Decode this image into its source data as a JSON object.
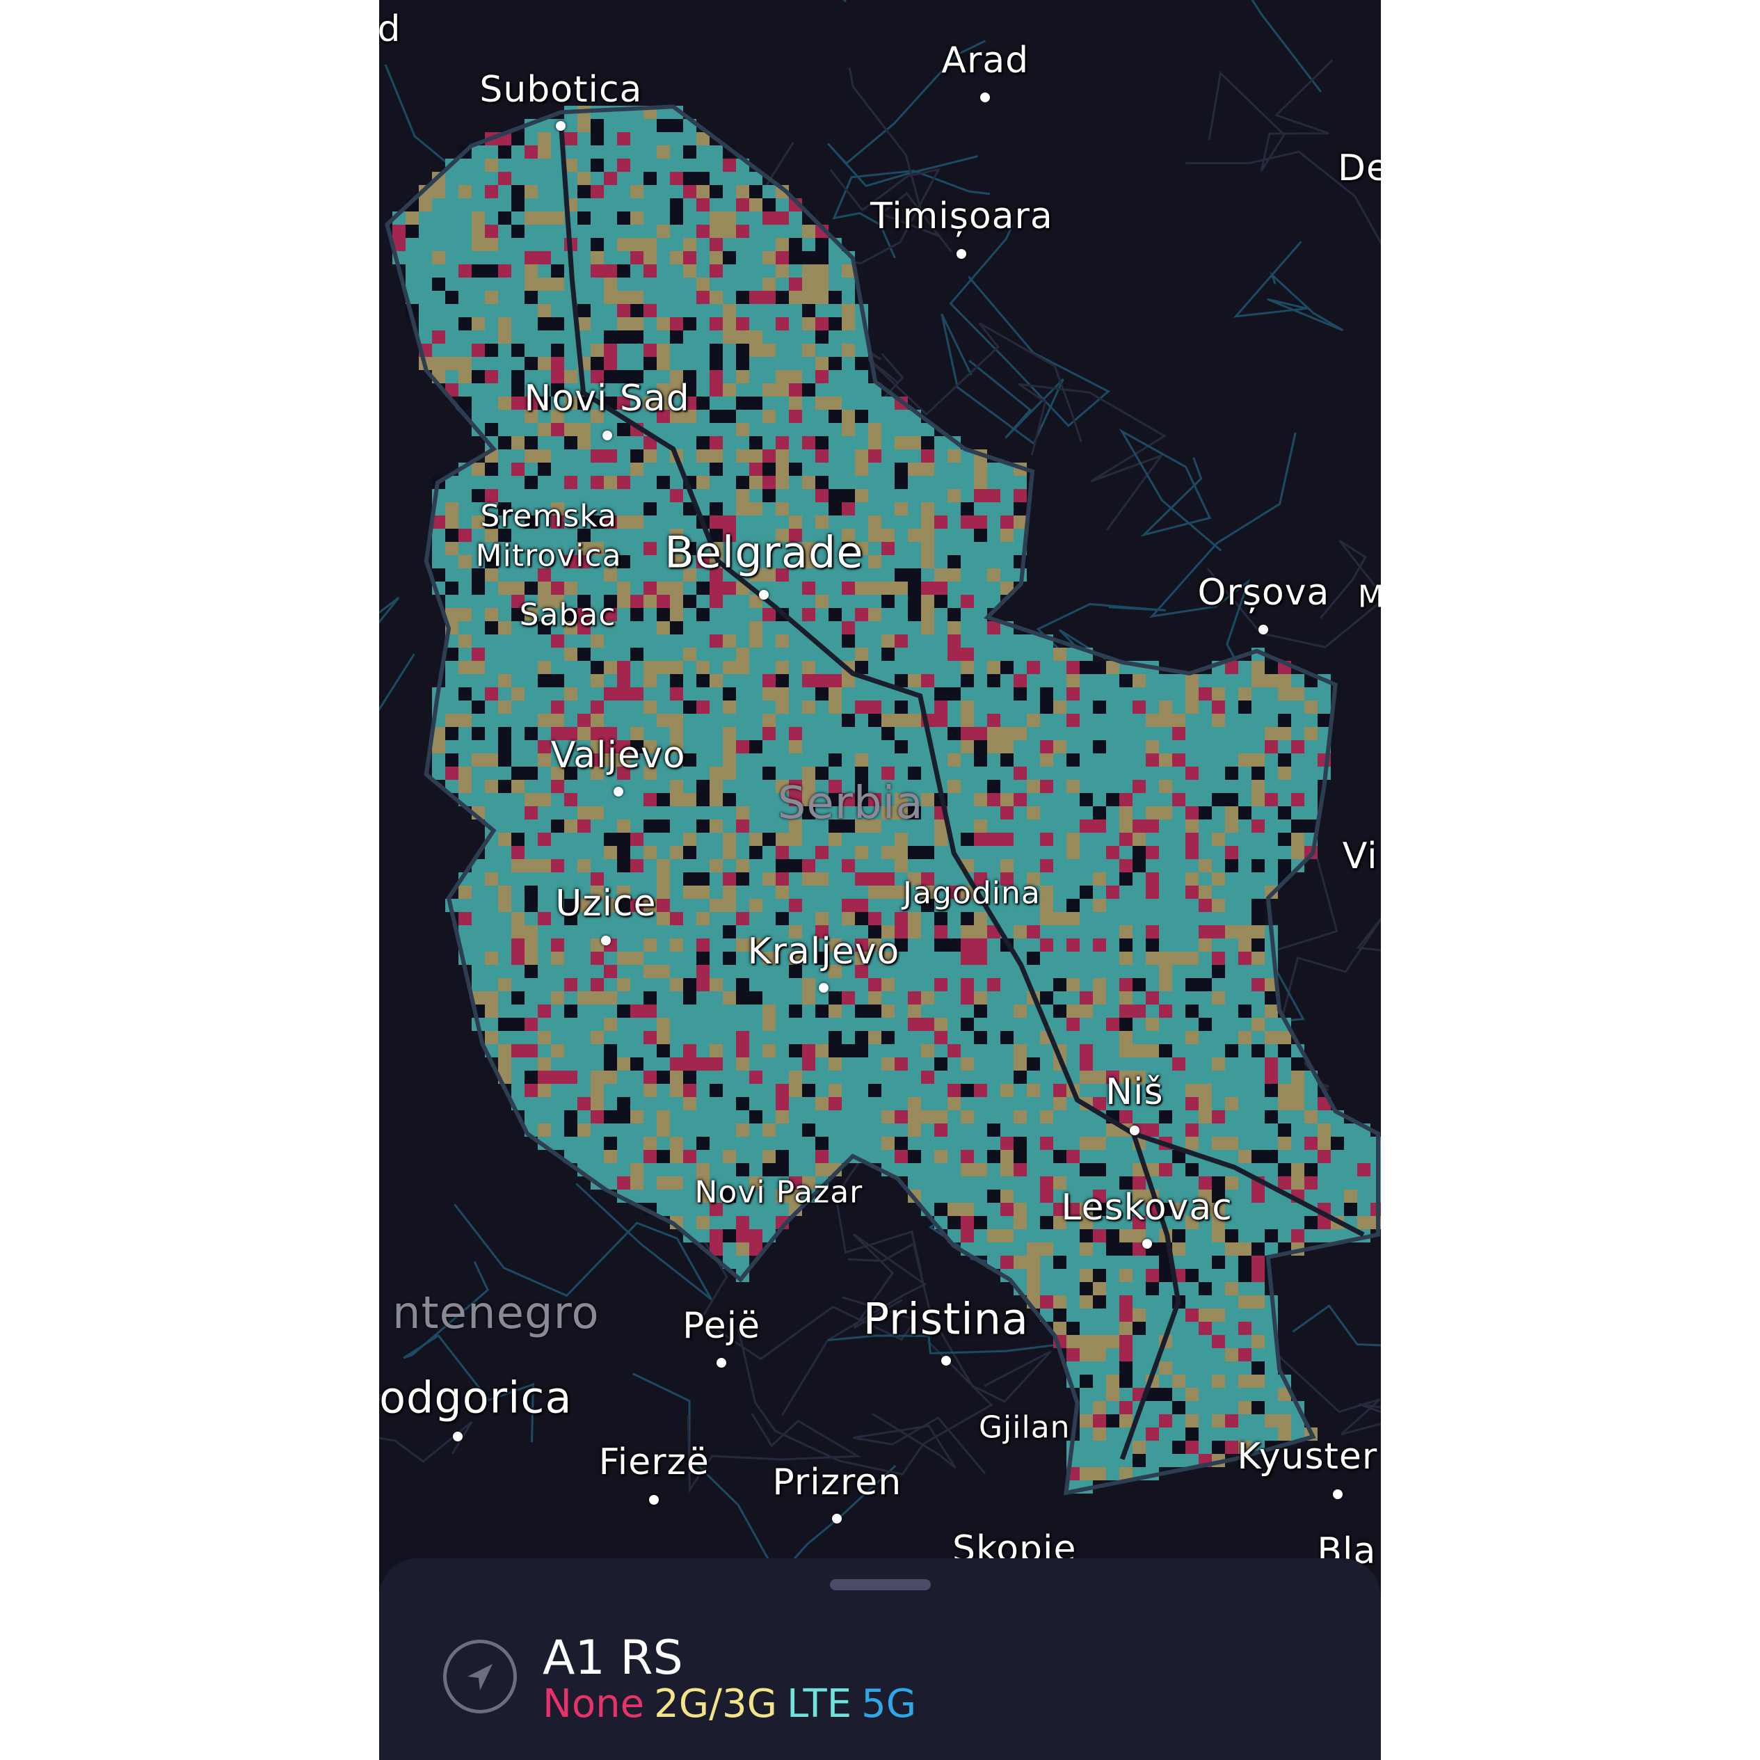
{
  "map": {
    "colors": {
      "background": "#12131f",
      "lte": "#3f9a9a",
      "g23": "#9a8b5c",
      "none": "#a3264f",
      "gap": "#0d0f1c",
      "border": "#2d3e52"
    },
    "labels": [
      {
        "text": "Subotica",
        "dot": true
      },
      {
        "text": "Arad",
        "dot": true
      },
      {
        "text": "Timișoara",
        "dot": true
      },
      {
        "text": "De",
        "dot": false
      },
      {
        "text": "Novi Sad",
        "dot": true
      },
      {
        "text": "Sremska",
        "dot": false
      },
      {
        "text": "Mitrovica",
        "dot": false
      },
      {
        "text": "Belgrade",
        "dot": true
      },
      {
        "text": "Sabac",
        "dot": false
      },
      {
        "text": "Orșova",
        "dot": true
      },
      {
        "text": "M",
        "dot": false
      },
      {
        "text": "Valjevo",
        "dot": true
      },
      {
        "text": "Serbia",
        "dot": false
      },
      {
        "text": "Vi",
        "dot": false
      },
      {
        "text": "Uzice",
        "dot": true
      },
      {
        "text": "Jagodina",
        "dot": false
      },
      {
        "text": "Kraljevo",
        "dot": true
      },
      {
        "text": "Niš",
        "dot": true
      },
      {
        "text": "Novi Pazar",
        "dot": false
      },
      {
        "text": "Leskovac",
        "dot": true
      },
      {
        "text": "ntenegro",
        "dot": false
      },
      {
        "text": "Pejë",
        "dot": true
      },
      {
        "text": "Pristina",
        "dot": true
      },
      {
        "text": "odgorica",
        "dot": true
      },
      {
        "text": "Gjilan",
        "dot": false
      },
      {
        "text": "Fierzë",
        "dot": true
      },
      {
        "text": "Prizren",
        "dot": true
      },
      {
        "text": "Kyuster",
        "dot": true
      },
      {
        "text": "Skopje",
        "dot": false
      },
      {
        "text": "Bla",
        "dot": false
      },
      {
        "text": "d",
        "dot": false
      }
    ]
  },
  "sheet": {
    "icon": "location-arrow-icon",
    "title": "A1 RS",
    "legend": [
      {
        "label": "None",
        "color": "#e8336a"
      },
      {
        "label": "2G/3G",
        "color": "#f3e48a"
      },
      {
        "label": "LTE",
        "color": "#6fe3dc"
      },
      {
        "label": "5G",
        "color": "#2fa8e8"
      }
    ]
  }
}
